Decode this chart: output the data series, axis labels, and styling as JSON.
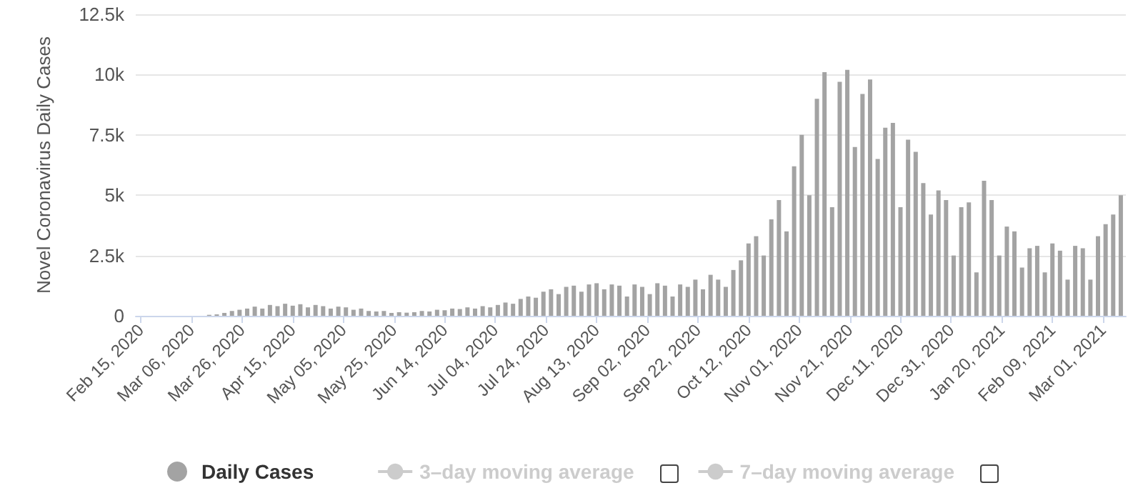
{
  "chart_data": {
    "type": "bar",
    "ylabel": "Novel Coronavirus Daily Cases",
    "x": [
      "2020-02-15",
      "2020-02-18",
      "2020-02-21",
      "2020-02-24",
      "2020-02-27",
      "2020-03-01",
      "2020-03-04",
      "2020-03-07",
      "2020-03-10",
      "2020-03-13",
      "2020-03-16",
      "2020-03-19",
      "2020-03-22",
      "2020-03-25",
      "2020-03-28",
      "2020-03-31",
      "2020-04-03",
      "2020-04-06",
      "2020-04-09",
      "2020-04-12",
      "2020-04-15",
      "2020-04-18",
      "2020-04-21",
      "2020-04-24",
      "2020-04-27",
      "2020-04-30",
      "2020-05-03",
      "2020-05-06",
      "2020-05-09",
      "2020-05-12",
      "2020-05-15",
      "2020-05-18",
      "2020-05-21",
      "2020-05-24",
      "2020-05-27",
      "2020-05-30",
      "2020-06-02",
      "2020-06-05",
      "2020-06-08",
      "2020-06-11",
      "2020-06-14",
      "2020-06-17",
      "2020-06-20",
      "2020-06-23",
      "2020-06-26",
      "2020-06-29",
      "2020-07-02",
      "2020-07-05",
      "2020-07-08",
      "2020-07-11",
      "2020-07-14",
      "2020-07-17",
      "2020-07-20",
      "2020-07-23",
      "2020-07-26",
      "2020-07-29",
      "2020-08-01",
      "2020-08-04",
      "2020-08-07",
      "2020-08-10",
      "2020-08-13",
      "2020-08-16",
      "2020-08-19",
      "2020-08-22",
      "2020-08-25",
      "2020-08-28",
      "2020-08-31",
      "2020-09-03",
      "2020-09-06",
      "2020-09-09",
      "2020-09-12",
      "2020-09-15",
      "2020-09-18",
      "2020-09-21",
      "2020-09-24",
      "2020-09-27",
      "2020-09-30",
      "2020-10-03",
      "2020-10-06",
      "2020-10-09",
      "2020-10-12",
      "2020-10-15",
      "2020-10-18",
      "2020-10-21",
      "2020-10-24",
      "2020-10-27",
      "2020-10-30",
      "2020-11-02",
      "2020-11-05",
      "2020-11-08",
      "2020-11-11",
      "2020-11-14",
      "2020-11-17",
      "2020-11-20",
      "2020-11-23",
      "2020-11-26",
      "2020-11-29",
      "2020-12-02",
      "2020-12-05",
      "2020-12-08",
      "2020-12-11",
      "2020-12-14",
      "2020-12-17",
      "2020-12-20",
      "2020-12-23",
      "2020-12-26",
      "2020-12-29",
      "2021-01-01",
      "2021-01-04",
      "2021-01-07",
      "2021-01-10",
      "2021-01-13",
      "2021-01-16",
      "2021-01-19",
      "2021-01-22",
      "2021-01-25",
      "2021-01-28",
      "2021-01-31",
      "2021-02-03",
      "2021-02-06",
      "2021-02-09",
      "2021-02-12",
      "2021-02-15",
      "2021-02-18",
      "2021-02-21",
      "2021-02-24",
      "2021-02-27",
      "2021-03-02",
      "2021-03-05",
      "2021-03-08"
    ],
    "series": [
      {
        "name": "Daily Cases",
        "color": "#a3a3a3",
        "values": [
          0,
          0,
          0,
          0,
          0,
          0,
          0,
          0,
          0,
          40,
          60,
          120,
          200,
          250,
          300,
          380,
          300,
          450,
          400,
          500,
          420,
          480,
          350,
          450,
          400,
          300,
          380,
          350,
          250,
          300,
          200,
          180,
          200,
          120,
          150,
          130,
          150,
          200,
          180,
          250,
          230,
          300,
          280,
          350,
          300,
          400,
          350,
          450,
          550,
          500,
          700,
          800,
          750,
          1000,
          1100,
          900,
          1200,
          1250,
          1000,
          1300,
          1350,
          1100,
          1300,
          1250,
          800,
          1300,
          1200,
          900,
          1350,
          1250,
          800,
          1300,
          1200,
          1500,
          1100,
          1700,
          1500,
          1200,
          1900,
          2300,
          3000,
          3300,
          2500,
          4000,
          4800,
          3500,
          6200,
          7500,
          5000,
          9000,
          10100,
          4500,
          9700,
          10200,
          7000,
          9200,
          9800,
          6500,
          7800,
          8000,
          4500,
          7300,
          6800,
          5500,
          4200,
          5200,
          4800,
          2500,
          4500,
          4700,
          1800,
          5600,
          4800,
          2500,
          3700,
          3500,
          2000,
          2800,
          2900,
          1800,
          3000,
          2700,
          1500,
          2900,
          2800,
          1500,
          3300,
          3800,
          4200,
          5000
        ]
      },
      {
        "name": "3–day moving average",
        "type": "line",
        "color": "#cccccc",
        "values": [
          null,
          null,
          null,
          null,
          null,
          null,
          null,
          null,
          null,
          null,
          null,
          null,
          null,
          null,
          null,
          null,
          null,
          null,
          null,
          null,
          null,
          null,
          null,
          null,
          null,
          null,
          null,
          null,
          null,
          null,
          null,
          null,
          null,
          null,
          null,
          null,
          null,
          null,
          null,
          null,
          null,
          null,
          null,
          null,
          null,
          null,
          null,
          null,
          null,
          null,
          null,
          null,
          null,
          null,
          null,
          null,
          null,
          null,
          null,
          null,
          null,
          null,
          null,
          null,
          null,
          null,
          null,
          null,
          null,
          null,
          null,
          null,
          null,
          null,
          null,
          null,
          null,
          null,
          null,
          null,
          null,
          null,
          null,
          null,
          null,
          null,
          null,
          null,
          null,
          null,
          null,
          null,
          null,
          null,
          null,
          null,
          null,
          null,
          null,
          null,
          null,
          null,
          null,
          null,
          null,
          null,
          null,
          null,
          null,
          null,
          null,
          null,
          null,
          null,
          null,
          null,
          null,
          null,
          null,
          null,
          null,
          null,
          null,
          null,
          null,
          null,
          null,
          null,
          null,
          null
        ]
      },
      {
        "name": "7–day moving average",
        "type": "line",
        "color": "#cccccc",
        "values": [
          null,
          null,
          null,
          null,
          null,
          null,
          null,
          null,
          null,
          null,
          null,
          null,
          null,
          null,
          null,
          null,
          null,
          null,
          null,
          null,
          null,
          null,
          null,
          null,
          null,
          null,
          null,
          null,
          null,
          null,
          null,
          null,
          null,
          null,
          null,
          null,
          null,
          null,
          null,
          null,
          null,
          null,
          null,
          null,
          null,
          null,
          null,
          null,
          null,
          null,
          null,
          null,
          null,
          null,
          null,
          null,
          null,
          null,
          null,
          null,
          null,
          null,
          null,
          null,
          null,
          null,
          null,
          null,
          null,
          null,
          null,
          null,
          null,
          null,
          null,
          null,
          null,
          null,
          null,
          null,
          null,
          null,
          null,
          null,
          null,
          null,
          null,
          null,
          null,
          null,
          null,
          null,
          null,
          null,
          null,
          null,
          null,
          null,
          null,
          null,
          null,
          null,
          null,
          null,
          null,
          null,
          null,
          null,
          null,
          null,
          null,
          null,
          null,
          null,
          null,
          null,
          null,
          null,
          null,
          null,
          null,
          null,
          null,
          null,
          null,
          null,
          null,
          null,
          null,
          null
        ]
      }
    ],
    "xlim": [
      "2020-02-13",
      "2021-03-10"
    ],
    "xticks": [
      {
        "value": "2020-02-15",
        "label": "Feb 15, 2020"
      },
      {
        "value": "2020-03-06",
        "label": "Mar 06, 2020"
      },
      {
        "value": "2020-03-26",
        "label": "Mar 26, 2020"
      },
      {
        "value": "2020-04-15",
        "label": "Apr 15, 2020"
      },
      {
        "value": "2020-05-05",
        "label": "May 05, 2020"
      },
      {
        "value": "2020-05-25",
        "label": "May 25, 2020"
      },
      {
        "value": "2020-06-14",
        "label": "Jun 14, 2020"
      },
      {
        "value": "2020-07-04",
        "label": "Jul 04, 2020"
      },
      {
        "value": "2020-07-24",
        "label": "Jul 24, 2020"
      },
      {
        "value": "2020-08-13",
        "label": "Aug 13, 2020"
      },
      {
        "value": "2020-09-02",
        "label": "Sep 02, 2020"
      },
      {
        "value": "2020-09-22",
        "label": "Sep 22, 2020"
      },
      {
        "value": "2020-10-12",
        "label": "Oct 12, 2020"
      },
      {
        "value": "2020-11-01",
        "label": "Nov 01, 2020"
      },
      {
        "value": "2020-11-21",
        "label": "Nov 21, 2020"
      },
      {
        "value": "2020-12-11",
        "label": "Dec 11, 2020"
      },
      {
        "value": "2020-12-31",
        "label": "Dec 31, 2020"
      },
      {
        "value": "2021-01-20",
        "label": "Jan 20, 2021"
      },
      {
        "value": "2021-02-09",
        "label": "Feb 09, 2021"
      },
      {
        "value": "2021-03-01",
        "label": "Mar 01, 2021"
      }
    ],
    "ylim": [
      0,
      12500
    ],
    "yticks": [
      0,
      {
        "value": 2500,
        "label": "2.5k"
      },
      {
        "value": 5000,
        "label": "5k"
      },
      {
        "value": 7500,
        "label": "7.5k"
      },
      {
        "value": 10000,
        "label": "10k"
      },
      {
        "value": 12500,
        "label": "12.5k"
      }
    ],
    "grid": "y",
    "legend": "bottom",
    "marker": "circle"
  }
}
